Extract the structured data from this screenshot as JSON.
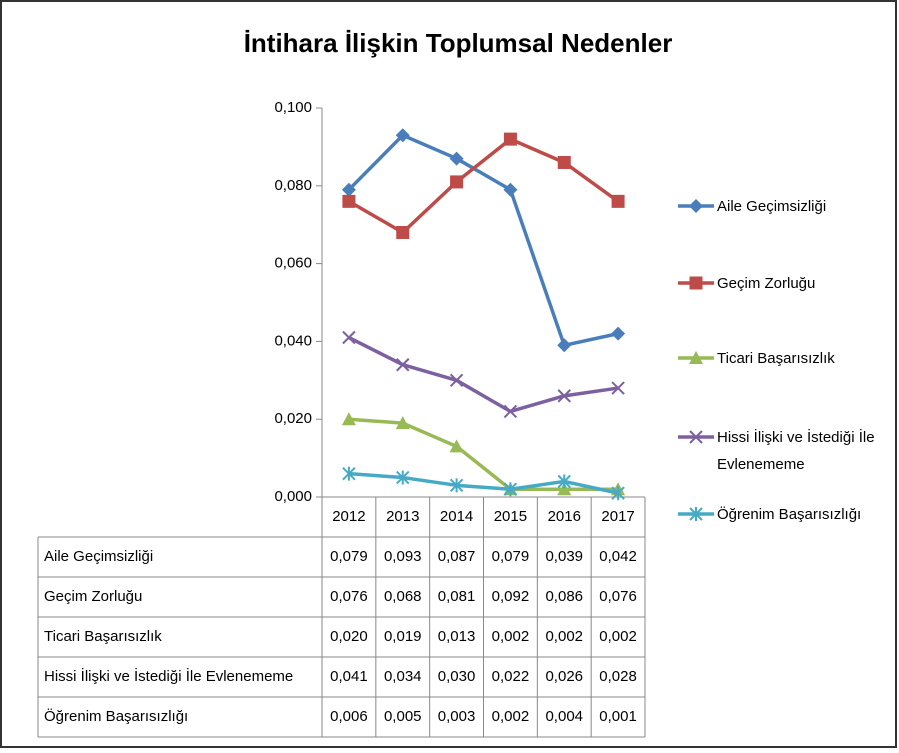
{
  "chart_data": {
    "type": "line",
    "title": "İntihara İlişkin Toplumsal Nedenler",
    "categories": [
      "2012",
      "2013",
      "2014",
      "2015",
      "2016",
      "2017"
    ],
    "ylim": [
      0,
      0.1
    ],
    "yticks": [
      {
        "value": 0,
        "label": "0,000"
      },
      {
        "value": 0.02,
        "label": "0,020"
      },
      {
        "value": 0.04,
        "label": "0,040"
      },
      {
        "value": 0.06,
        "label": "0,060"
      },
      {
        "value": 0.08,
        "label": "0,080"
      },
      {
        "value": 0.1,
        "label": "0,100"
      }
    ],
    "legend": "right",
    "series": [
      {
        "name": "Aile Geçimsizliği",
        "color": "#4a7ebb",
        "marker": "diamond",
        "values": [
          0.079,
          0.093,
          0.087,
          0.079,
          0.039,
          0.042
        ],
        "value_labels": [
          "0,079",
          "0,093",
          "0,087",
          "0,079",
          "0,039",
          "0,042"
        ]
      },
      {
        "name": "Geçim Zorluğu",
        "color": "#be4b48",
        "marker": "square",
        "values": [
          0.076,
          0.068,
          0.081,
          0.092,
          0.086,
          0.076
        ],
        "value_labels": [
          "0,076",
          "0,068",
          "0,081",
          "0,092",
          "0,086",
          "0,076"
        ]
      },
      {
        "name": "Ticari Başarısızlık",
        "color": "#98b954",
        "marker": "triangle",
        "values": [
          0.02,
          0.019,
          0.013,
          0.002,
          0.002,
          0.002
        ],
        "value_labels": [
          "0,020",
          "0,019",
          "0,013",
          "0,002",
          "0,002",
          "0,002"
        ]
      },
      {
        "name": "Hissi İlişki ve İstediği İle Evlenememe",
        "color": "#7d60a0",
        "marker": "x",
        "values": [
          0.041,
          0.034,
          0.03,
          0.022,
          0.026,
          0.028
        ],
        "value_labels": [
          "0,041",
          "0,034",
          "0,030",
          "0,022",
          "0,026",
          "0,028"
        ]
      },
      {
        "name": "Öğrenim Başarısızlığı",
        "color": "#46aac5",
        "marker": "star",
        "values": [
          0.006,
          0.005,
          0.003,
          0.002,
          0.004,
          0.001
        ],
        "value_labels": [
          "0,006",
          "0,005",
          "0,003",
          "0,002",
          "0,004",
          "0,001"
        ]
      }
    ]
  }
}
